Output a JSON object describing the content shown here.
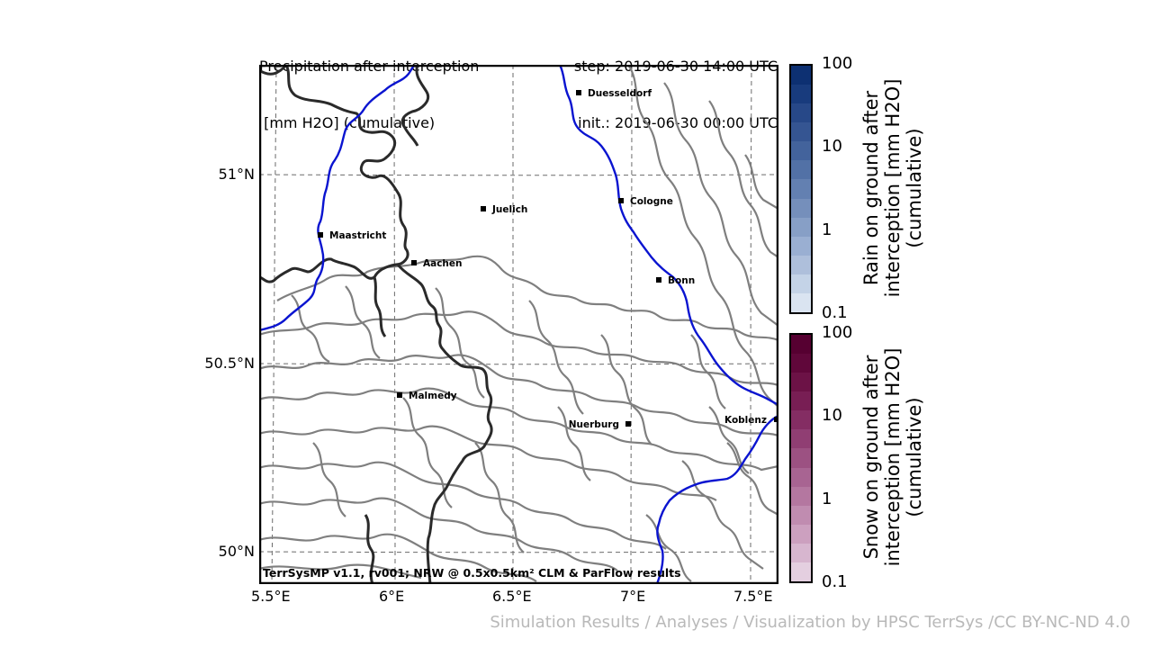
{
  "header": {
    "title_line1": "Precipitation after interception",
    "title_line2": " [mm H2O] (cumulative)",
    "step": "step: 2019-06-30 14:00 UTC",
    "init": "init.: 2019-06-30 00:00 UTC"
  },
  "map": {
    "credit": "TerrSysMP v1.1, rv001; NRW @ 0.5x0.5km² CLM & ParFlow results",
    "lon_labels": [
      "5.5°E",
      "6°E",
      "6.5°E",
      "7°E",
      "7.5°E"
    ],
    "lat_labels": [
      "51°N",
      "50.5°N",
      "50°N"
    ],
    "cities": [
      {
        "name": "Duesseldorf",
        "lon": 6.77,
        "lat": 51.22
      },
      {
        "name": "Cologne",
        "lon": 6.95,
        "lat": 50.94
      },
      {
        "name": "Juelich",
        "lon": 6.37,
        "lat": 50.92
      },
      {
        "name": "Maastricht",
        "lon": 5.69,
        "lat": 50.85
      },
      {
        "name": "Aachen",
        "lon": 6.08,
        "lat": 50.77
      },
      {
        "name": "Bonn",
        "lon": 7.1,
        "lat": 50.73
      },
      {
        "name": "Malmedy",
        "lon": 6.03,
        "lat": 50.42
      },
      {
        "name": "Nuerburg",
        "lon": 6.96,
        "lat": 50.34
      },
      {
        "name": "Koblenz",
        "lon": 7.59,
        "lat": 50.36
      }
    ],
    "colors": {
      "river": "#0a14d0",
      "border": "#2a2a2a",
      "contour": "#7f7f7f",
      "grid": "#6a6a6a"
    }
  },
  "colorbars": [
    {
      "label": "Rain on ground after\ninterception [mm H2O]\n(cumulative)",
      "ticks": [
        "100",
        "10",
        "1",
        "0.1"
      ],
      "colors": [
        "#dae4f1",
        "#c4d3e7",
        "#aebfdb",
        "#9aafd2",
        "#879fc6",
        "#758fbb",
        "#6380b1",
        "#5271a6",
        "#43639c",
        "#355592",
        "#274888",
        "#183b7d",
        "#0d3072"
      ]
    },
    {
      "label": "Snow on ground after\ninterception [mm H2O]\n(cumulative)",
      "ticks": [
        "100",
        "10",
        "1",
        "0.1"
      ],
      "colors": [
        "#e4cfe0",
        "#d7b6cf",
        "#cca0bf",
        "#c08cb0",
        "#b477a0",
        "#a86492",
        "#9c5182",
        "#903e73",
        "#842d63",
        "#781e54",
        "#6c1246",
        "#60073a",
        "#560031"
      ]
    }
  ],
  "footer": "Simulation Results / Analyses / Visualization by HPSC TerrSys /CC BY-NC-ND 4.0"
}
